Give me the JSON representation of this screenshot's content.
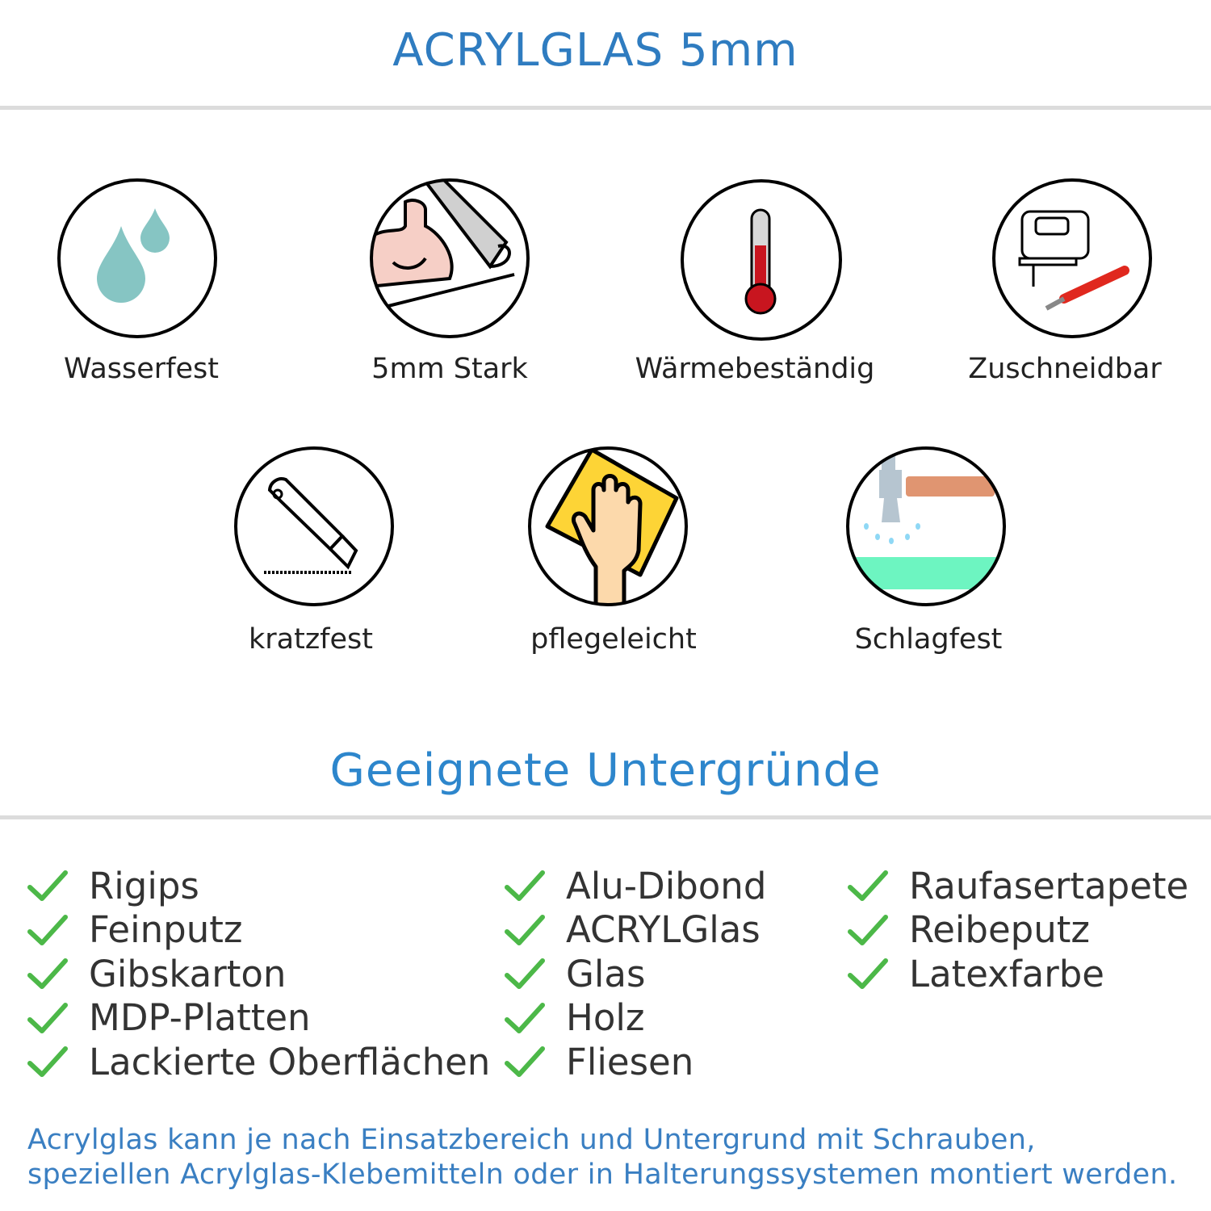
{
  "header": {
    "title": "ACRYLGLAS 5mm"
  },
  "features": [
    {
      "label": "Wasserfest",
      "icon": "water-drops-icon"
    },
    {
      "label": "5mm Stark",
      "icon": "strong-arm-icon"
    },
    {
      "label": "Wärmebeständig",
      "icon": "thermometer-icon"
    },
    {
      "label": "Zuschneidbar",
      "icon": "jigsaw-cutter-icon"
    },
    {
      "label": "kratzfest",
      "icon": "utility-knife-icon"
    },
    {
      "label": "pflegeleicht",
      "icon": "cleaning-hand-icon"
    },
    {
      "label": "Schlagfest",
      "icon": "hammer-icon"
    }
  ],
  "surfaces": {
    "title": "Geeignete Untergründe",
    "columns": [
      [
        "Rigips",
        "Feinputz",
        "Gibskarton",
        "MDP-Platten",
        "Lackierte Oberflächen"
      ],
      [
        "Alu-Dibond",
        "ACRYLGlas",
        "Glas",
        "Holz",
        "Fliesen"
      ],
      [
        "Raufasertapete",
        "Reibeputz",
        "Latexfarbe"
      ]
    ]
  },
  "footer": {
    "line1": "Acrylglas kann je nach Einsatzbereich und Untergrund mit Schrauben,",
    "line2": "speziellen Acrylglas-Klebemitteln oder in Halterungssystemen montiert werden."
  },
  "colors": {
    "title": "#2f7cc0",
    "check": "#4cb848",
    "footer": "#3a7fc2"
  }
}
